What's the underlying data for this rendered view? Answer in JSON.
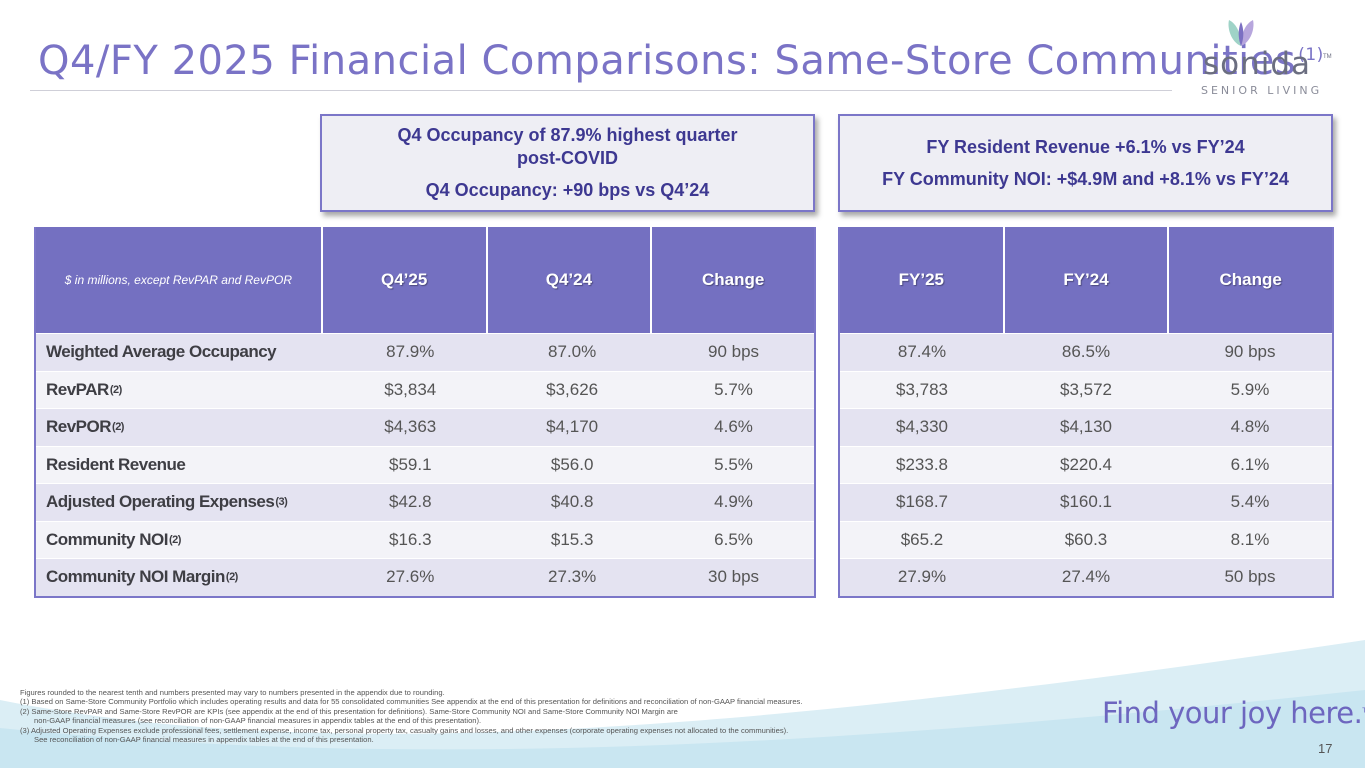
{
  "title": {
    "text": "Q4/FY 2025 Financial Comparisons: Same-Store Communities",
    "note": "(1)"
  },
  "logo": {
    "brand": "sonida",
    "tm": "TM",
    "sub": "SENIOR LIVING"
  },
  "callouts": {
    "left": {
      "line1": "Q4 Occupancy of 87.9% highest quarter",
      "line2": "post-COVID",
      "line3": "Q4 Occupancy: +90 bps vs Q4’24"
    },
    "right": {
      "line1": "FY Resident Revenue +6.1% vs FY’24",
      "line2": "FY Community NOI: +$4.9M and +8.1% vs FY’24"
    }
  },
  "table": {
    "caption": "$ in millions, except RevPAR and RevPOR",
    "q_headers": [
      "Q4’25",
      "Q4’24",
      "Change"
    ],
    "fy_headers": [
      "FY’25",
      "FY’24",
      "Change"
    ],
    "rows": [
      {
        "label": "Weighted Average Occupancy",
        "note": "",
        "q": [
          "87.9%",
          "87.0%",
          "90 bps"
        ],
        "fy": [
          "87.4%",
          "86.5%",
          "90 bps"
        ]
      },
      {
        "label": "RevPAR",
        "note": "(2)",
        "q": [
          "$3,834",
          "$3,626",
          "5.7%"
        ],
        "fy": [
          "$3,783",
          "$3,572",
          "5.9%"
        ]
      },
      {
        "label": "RevPOR",
        "note": "(2)",
        "q": [
          "$4,363",
          "$4,170",
          "4.6%"
        ],
        "fy": [
          "$4,330",
          "$4,130",
          "4.8%"
        ]
      },
      {
        "label": "Resident Revenue",
        "note": "",
        "q": [
          "$59.1",
          "$56.0",
          "5.5%"
        ],
        "fy": [
          "$233.8",
          "$220.4",
          "6.1%"
        ]
      },
      {
        "label": "Adjusted Operating Expenses",
        "note": "(3)",
        "q": [
          "$42.8",
          "$40.8",
          "4.9%"
        ],
        "fy": [
          "$168.7",
          "$160.1",
          "5.4%"
        ]
      },
      {
        "label": "Community NOI",
        "note": "(2)",
        "q": [
          "$16.3",
          "$15.3",
          "6.5%"
        ],
        "fy": [
          "$65.2",
          "$60.3",
          "8.1%"
        ]
      },
      {
        "label": "Community NOI Margin",
        "note": "(2)",
        "q": [
          "27.6%",
          "27.3%",
          "30 bps"
        ],
        "fy": [
          "27.9%",
          "27.4%",
          "50 bps"
        ]
      }
    ]
  },
  "footnotes": [
    "Figures rounded to the nearest tenth and numbers presented may vary to numbers presented in the appendix due to rounding.",
    "(1) Based on Same-Store Community Portfolio which includes operating results and data for 55 consolidated communities  See appendix at the end of this presentation for definitions and reconciliation of non-GAAP financial measures.",
    "(2) Same-Store RevPAR and Same-Store RevPOR are KPIs (see appendix at the end of this presentation for definitions). Same-Store Community NOI and Same-Store Community NOI Margin are",
    "     non-GAAP financial measures (see reconciliation of non-GAAP financial measures in appendix tables at the end of this presentation).",
    "(3) Adjusted Operating Expenses exclude professional fees, settlement expense, income tax, personal property tax, casualty gains and losses, and other expenses (corporate operating expenses not allocated to the communities).",
    "     See reconciliation of non-GAAP financial measures in appendix tables at the end of this presentation."
  ],
  "tagline": {
    "text": "Find your joy here.",
    "tm": "TM"
  },
  "page_number": "17",
  "colors": {
    "accent": "#7470c1",
    "title": "#7a73c6",
    "callout_text": "#3d3891"
  }
}
